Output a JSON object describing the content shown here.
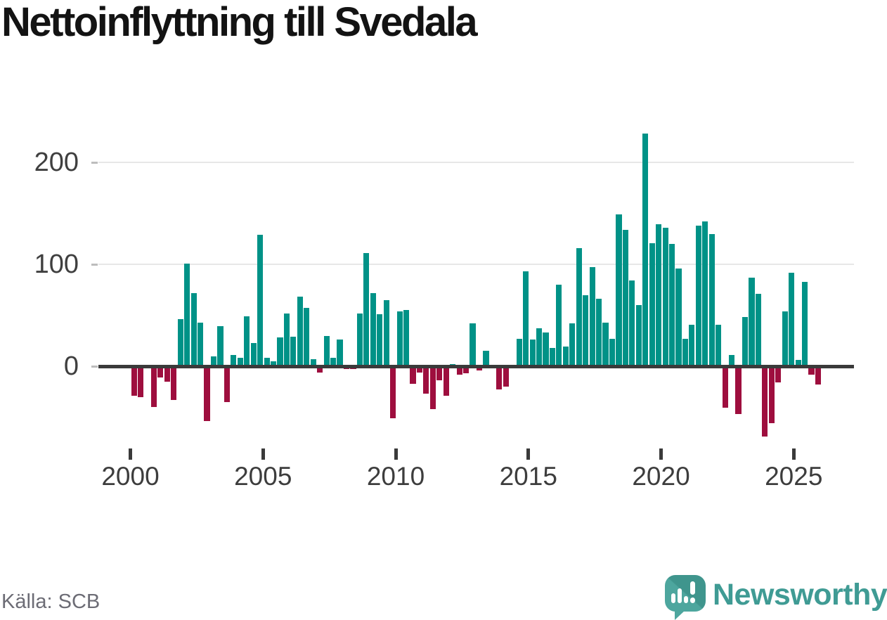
{
  "header": {
    "title": "Nettoinflyttning till Svedala"
  },
  "footer": {
    "source": "Källa: SCB",
    "brand": "Newsworthy"
  },
  "chart_data": {
    "type": "bar",
    "title": "Nettoinflyttning till Svedala",
    "source": "Källa: SCB",
    "frequency": "quarterly",
    "start_period": "2000Q1",
    "end_period": "2025Q4",
    "y_axis": {
      "tick_labels": [
        "0",
        "100",
        "200"
      ],
      "tick_values": [
        0,
        100,
        200
      ],
      "range": [
        -90,
        235
      ],
      "grid": true
    },
    "x_axis": {
      "tick_labels": [
        "2000",
        "2005",
        "2010",
        "2015",
        "2020",
        "2025"
      ],
      "tick_values": [
        2000,
        2005,
        2010,
        2015,
        2020,
        2025
      ]
    },
    "legend": "none",
    "colors": {
      "positive": "#009287",
      "negative": "#9e0e3e",
      "axis": "#3a3a3a",
      "grid": "#e7e7e7"
    },
    "values": [
      -29,
      -30,
      0,
      -40,
      -11,
      -15,
      -33,
      46,
      101,
      72,
      43,
      -54,
      10,
      39,
      -35,
      11,
      8,
      49,
      23,
      129,
      8,
      5,
      28,
      52,
      29,
      68,
      57,
      7,
      -6,
      30,
      8,
      26,
      -3,
      -3,
      52,
      111,
      72,
      51,
      65,
      -51,
      54,
      55,
      -17,
      -6,
      -27,
      -42,
      -14,
      -29,
      2,
      -8,
      -7,
      42,
      -4,
      15,
      0,
      -23,
      -20,
      0,
      27,
      93,
      26,
      37,
      33,
      18,
      80,
      19,
      42,
      116,
      70,
      97,
      66,
      43,
      27,
      149,
      134,
      84,
      60,
      228,
      121,
      139,
      136,
      120,
      96,
      27,
      41,
      138,
      142,
      130,
      41,
      -41,
      11,
      -47,
      48,
      87,
      71,
      -69,
      -56,
      -16,
      54,
      92,
      6,
      83,
      -8,
      -18
    ]
  }
}
